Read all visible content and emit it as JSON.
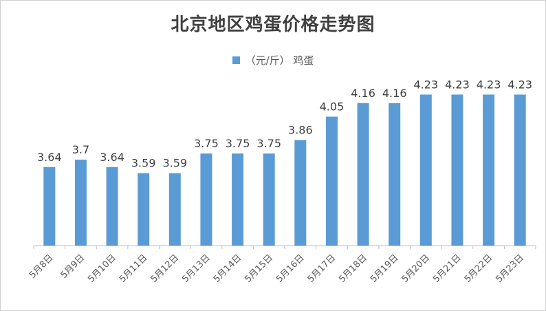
{
  "chart_data": {
    "type": "bar",
    "title": "北京地区鸡蛋价格走势图",
    "categories": [
      "5月8日",
      "5月9日",
      "5月10日",
      "5月11日",
      "5月12日",
      "5月13日",
      "5月14日",
      "5月15日",
      "5月16日",
      "5月17日",
      "5月18日",
      "5月19日",
      "5月20日",
      "5月21日",
      "5月22日",
      "5月23日"
    ],
    "series": [
      {
        "name": "（元/斤） 鸡蛋",
        "values": [
          3.64,
          3.7,
          3.64,
          3.59,
          3.59,
          3.75,
          3.75,
          3.75,
          3.86,
          4.05,
          4.16,
          4.16,
          4.23,
          4.23,
          4.23,
          4.23
        ],
        "color": "#5b9bd5"
      }
    ],
    "legend": "top-center",
    "grid": false
  }
}
